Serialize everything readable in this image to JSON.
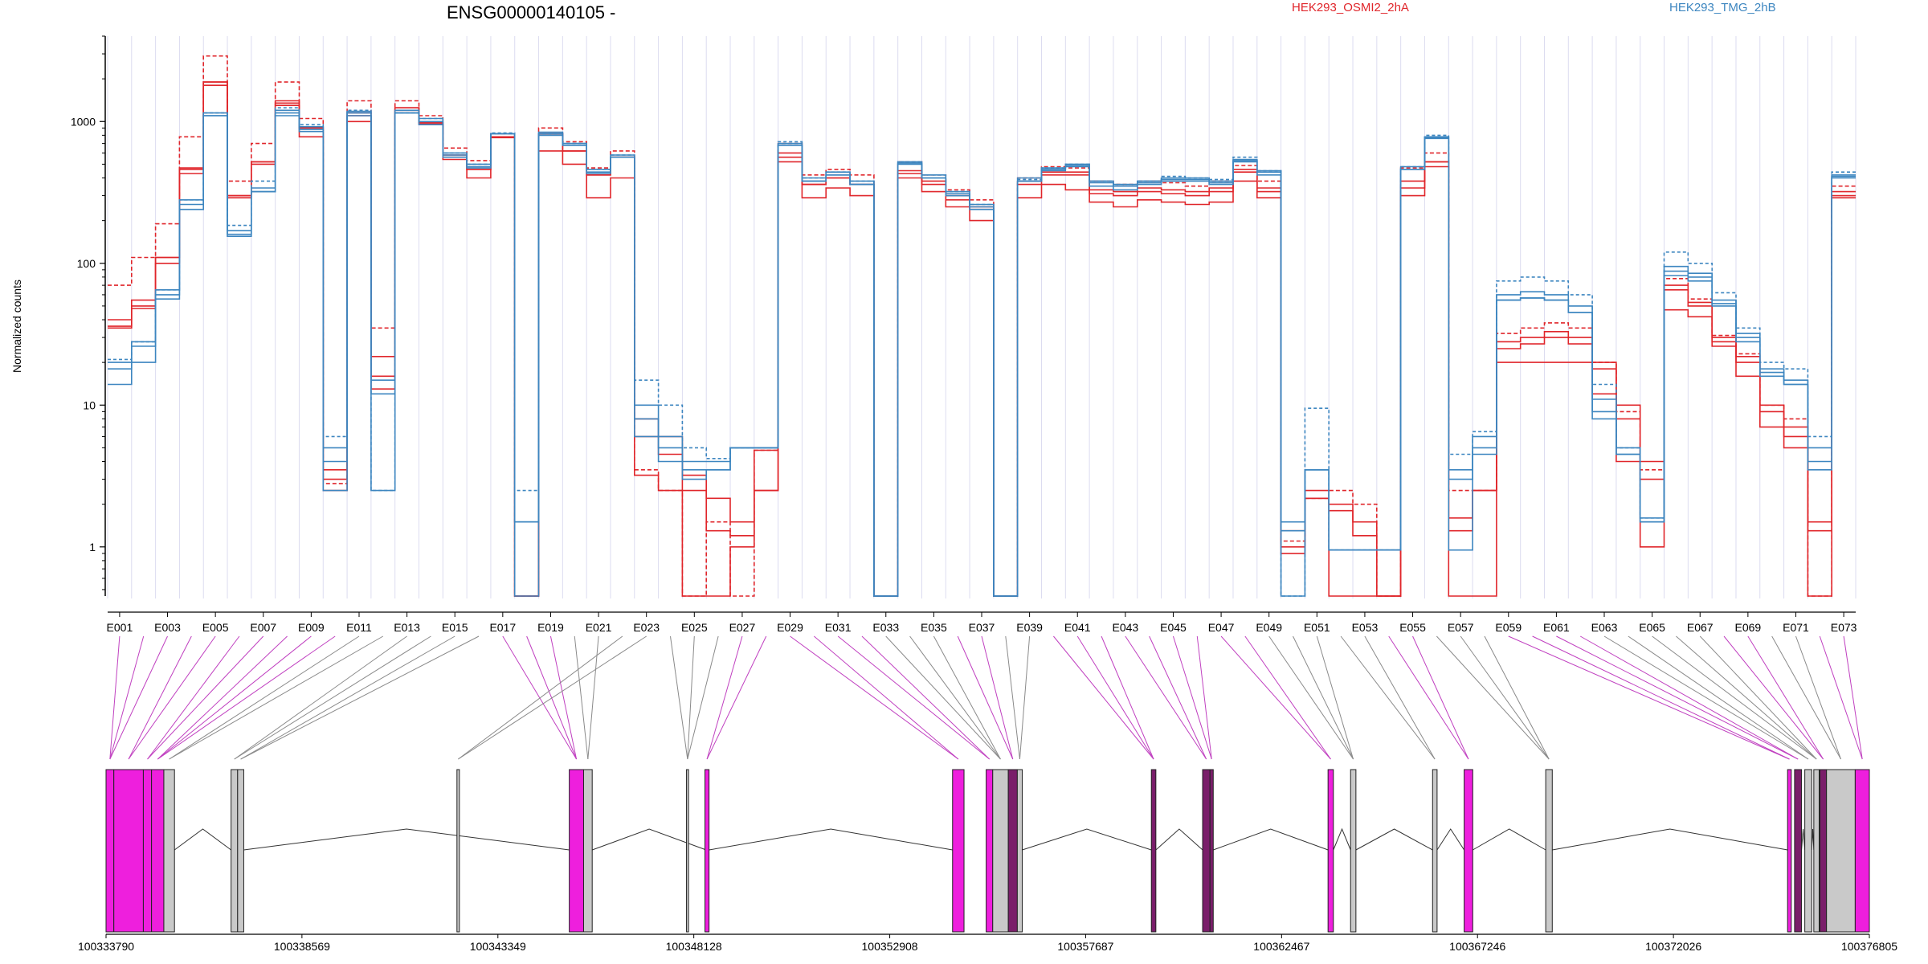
{
  "title": "ENSG00000140105 -",
  "ylabel": "Normalized counts",
  "legend": [
    {
      "name": "HEK293_OSMI2_2hA",
      "color": "#e0262b"
    },
    {
      "name": "HEK293_TMG_2hB",
      "color": "#3d86c0"
    }
  ],
  "chart_data": {
    "type": "line",
    "scale": "log",
    "ylim": [
      0.45,
      4000
    ],
    "yticks": [
      1,
      10,
      100,
      1000
    ],
    "ytick_labels": [
      "1",
      "10",
      "100",
      "1000"
    ],
    "exon_labels": [
      "E001",
      "E003",
      "E005",
      "E007",
      "E009",
      "E011",
      "E013",
      "E015",
      "E017",
      "E019",
      "E021",
      "E023",
      "E025",
      "E027",
      "E029",
      "E031",
      "E033",
      "E035",
      "E037",
      "E039",
      "E041",
      "E043",
      "E045",
      "E047",
      "E049",
      "E051",
      "E053",
      "E055",
      "E057",
      "E059",
      "E061",
      "E063",
      "E065",
      "E067",
      "E069",
      "E071",
      "E073"
    ],
    "series": [
      {
        "name": "HEK293_OSMI2_2hA",
        "color": "#e0262b",
        "dash": "5,3",
        "values": [
          70,
          110,
          190,
          780,
          2900,
          380,
          700,
          1900,
          1050,
          2.8,
          1400,
          35,
          1400,
          1100,
          650,
          530,
          820,
          0.45,
          900,
          720,
          470,
          620,
          3.5,
          2.5,
          0.45,
          1.5,
          0.45,
          4.8,
          700,
          420,
          460,
          420,
          0.45,
          520,
          420,
          330,
          280,
          0.45,
          400,
          480,
          470,
          380,
          360,
          380,
          370,
          350,
          380,
          490,
          380,
          1.1,
          2.2,
          2.5,
          2,
          0.45,
          470,
          600,
          2.5,
          2.5,
          32,
          35,
          38,
          35,
          20,
          9,
          3.5,
          78,
          56,
          31,
          23,
          10,
          8,
          0.45,
          350
        ]
      },
      {
        "name": "HEK293_OSMI2_2hA",
        "color": "#e0262b",
        "dash": "",
        "values": [
          40,
          55,
          110,
          460,
          1900,
          300,
          520,
          1350,
          900,
          3.5,
          1150,
          22,
          1250,
          980,
          580,
          460,
          780,
          0.45,
          820,
          620,
          420,
          560,
          8,
          6,
          3.2,
          2.2,
          1.5,
          4.8,
          600,
          360,
          400,
          360,
          0.45,
          450,
          380,
          300,
          250,
          0.45,
          380,
          440,
          440,
          330,
          320,
          340,
          330,
          320,
          340,
          460,
          340,
          1.3,
          2.5,
          2,
          1.5,
          0.45,
          380,
          520,
          1.6,
          2.5,
          28,
          30,
          33,
          30,
          20,
          10,
          4,
          70,
          53,
          30,
          22,
          10,
          7,
          1.5,
          320
        ]
      },
      {
        "name": "HEK293_OSMI2_2hA",
        "color": "#e0262b",
        "dash": "",
        "values": [
          36,
          50,
          110,
          470,
          1900,
          300,
          520,
          1400,
          900,
          3,
          1100,
          16,
          1250,
          980,
          560,
          460,
          780,
          0.45,
          820,
          620,
          420,
          560,
          6,
          4.5,
          2.5,
          1.3,
          1.2,
          2.5,
          560,
          360,
          400,
          360,
          0.45,
          430,
          360,
          280,
          240,
          0.45,
          360,
          420,
          420,
          310,
          300,
          320,
          310,
          300,
          320,
          440,
          320,
          1,
          2.2,
          1.8,
          1.2,
          0.45,
          340,
          520,
          1.3,
          2.5,
          25,
          27,
          30,
          27,
          18,
          8,
          3,
          65,
          50,
          28,
          20,
          9,
          6,
          1.3,
          300
        ]
      },
      {
        "name": "HEK293_OSMI2_2hA",
        "color": "#e0262b",
        "dash": "",
        "values": [
          35,
          48,
          100,
          430,
          1800,
          290,
          500,
          1300,
          780,
          2.5,
          1000,
          13,
          1200,
          960,
          540,
          400,
          770,
          0.45,
          620,
          500,
          290,
          400,
          3.2,
          2.5,
          0.45,
          0.45,
          1,
          2.5,
          520,
          290,
          340,
          300,
          0.45,
          400,
          320,
          250,
          200,
          0.45,
          290,
          360,
          330,
          270,
          250,
          280,
          270,
          260,
          270,
          380,
          290,
          0.9,
          2.2,
          0.45,
          0.45,
          0.45,
          300,
          480,
          0.45,
          0.45,
          20,
          20,
          20,
          20,
          12,
          4,
          1,
          47,
          42,
          26,
          16,
          7,
          5,
          0.45,
          290
        ]
      },
      {
        "name": "HEK293_TMG_2hB",
        "color": "#3d86c0",
        "dash": "4,3",
        "values": [
          21,
          28,
          65,
          280,
          1150,
          185,
          380,
          1250,
          950,
          6,
          1200,
          2.5,
          1150,
          1050,
          600,
          500,
          830,
          2.5,
          820,
          700,
          460,
          580,
          15,
          10,
          5,
          4.2,
          5,
          5,
          720,
          400,
          440,
          380,
          0.45,
          520,
          420,
          320,
          260,
          0.45,
          390,
          470,
          500,
          380,
          350,
          380,
          410,
          400,
          390,
          560,
          450,
          0.45,
          9.5,
          0.95,
          0.95,
          0.95,
          480,
          800,
          4.5,
          6.5,
          75,
          80,
          75,
          60,
          14,
          5,
          1.6,
          120,
          100,
          62,
          35,
          20,
          18,
          6,
          440
        ]
      },
      {
        "name": "HEK293_TMG_2hB",
        "color": "#3d86c0",
        "dash": "",
        "values": [
          20,
          28,
          65,
          280,
          1150,
          170,
          340,
          1200,
          920,
          5,
          1180,
          15,
          1200,
          1050,
          600,
          500,
          820,
          1.5,
          840,
          700,
          460,
          580,
          10,
          6,
          4,
          4,
          5,
          5,
          700,
          400,
          440,
          380,
          0.45,
          520,
          420,
          320,
          260,
          0.45,
          400,
          470,
          500,
          380,
          360,
          380,
          400,
          400,
          380,
          540,
          450,
          1.5,
          3.5,
          0.95,
          0.95,
          0.95,
          480,
          780,
          3.5,
          6,
          60,
          63,
          60,
          50,
          11,
          5,
          1.6,
          95,
          85,
          55,
          32,
          18,
          15,
          5,
          420
        ]
      },
      {
        "name": "HEK293_TMG_2hB",
        "color": "#3d86c0",
        "dash": "",
        "values": [
          18,
          26,
          60,
          260,
          1100,
          160,
          320,
          1150,
          880,
          4,
          1150,
          12,
          1150,
          1000,
          580,
          480,
          820,
          1.5,
          820,
          680,
          440,
          560,
          8,
          5,
          3.5,
          3.5,
          5,
          5,
          680,
          380,
          420,
          360,
          0.45,
          510,
          400,
          310,
          250,
          0.45,
          380,
          460,
          490,
          370,
          350,
          370,
          390,
          390,
          370,
          530,
          440,
          1.3,
          3.5,
          0.95,
          0.95,
          0.95,
          460,
          770,
          3,
          5,
          55,
          57,
          55,
          45,
          9,
          4.5,
          1.5,
          88,
          80,
          52,
          30,
          17,
          14,
          4,
          410
        ]
      },
      {
        "name": "HEK293_TMG_2hB",
        "color": "#3d86c0",
        "dash": "",
        "values": [
          14,
          20,
          56,
          240,
          1100,
          155,
          320,
          1100,
          850,
          2.5,
          1100,
          2.5,
          1150,
          950,
          560,
          470,
          820,
          0.45,
          800,
          680,
          430,
          560,
          6,
          4,
          3,
          3.5,
          5,
          5,
          680,
          380,
          420,
          360,
          0.45,
          500,
          400,
          300,
          240,
          0.45,
          380,
          450,
          480,
          350,
          330,
          360,
          380,
          380,
          360,
          520,
          420,
          0.45,
          3.5,
          0.95,
          0.95,
          0.95,
          460,
          760,
          0.95,
          4.5,
          55,
          57,
          55,
          45,
          8,
          4.5,
          1.5,
          82,
          75,
          50,
          28,
          16,
          14,
          3.5,
          400
        ]
      }
    ]
  },
  "gene_model": {
    "coord_labels": [
      "100333790",
      "100338569",
      "100343349",
      "100348128",
      "100352908",
      "100357687",
      "100362467",
      "100367246",
      "100372026",
      "100376805"
    ],
    "coord_start": 100333790,
    "coord_end": 100376805
  }
}
